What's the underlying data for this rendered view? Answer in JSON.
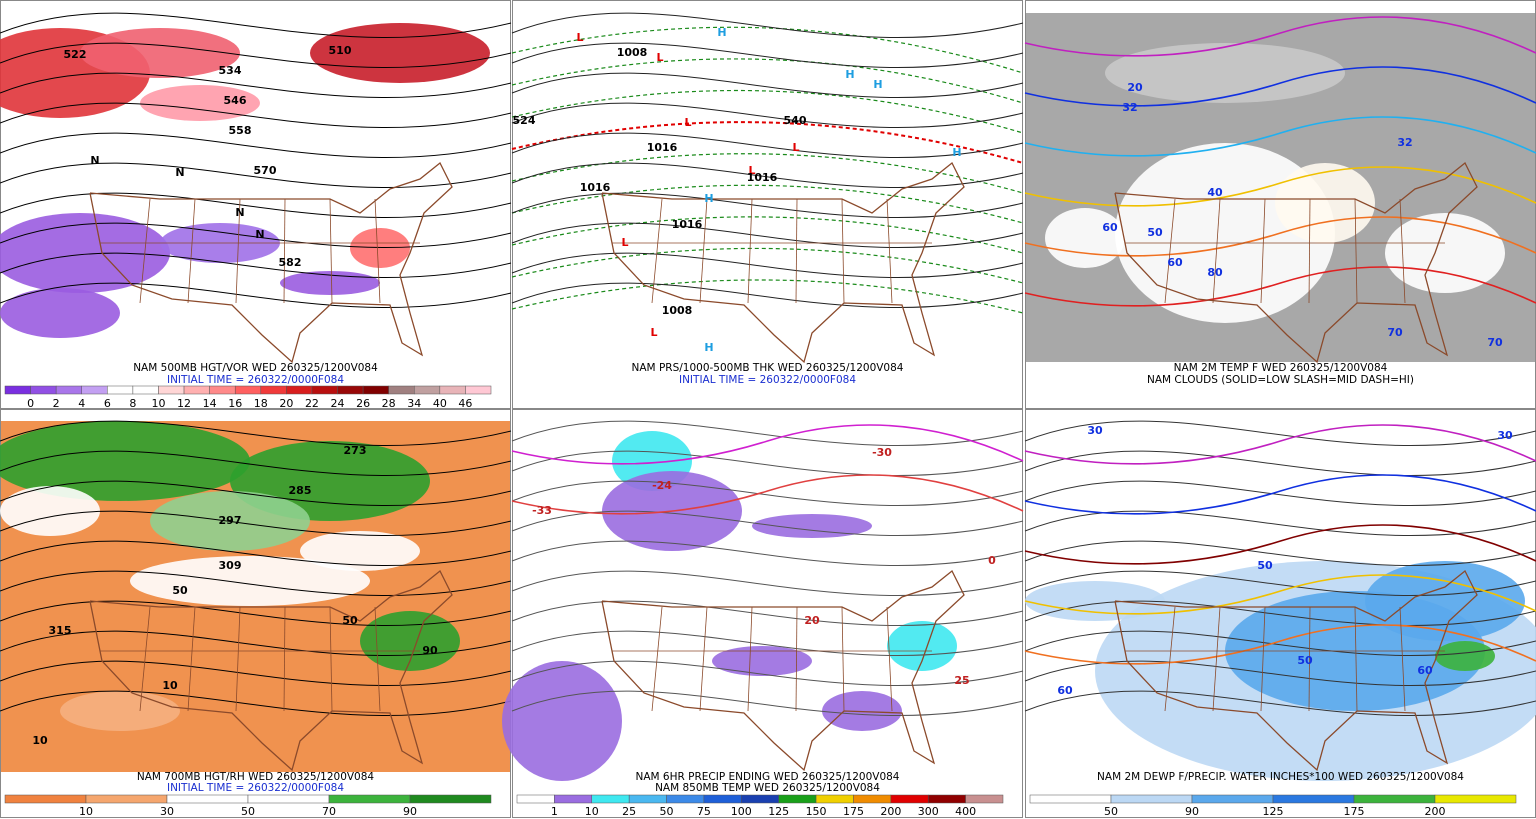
{
  "panels": [
    {
      "caption": [
        "NAM 500MB HGT/VOR WED 260325/1200V084",
        "INITIAL TIME = 260322/0000F084"
      ],
      "colorbar": {
        "labels": [
          0,
          2,
          4,
          6,
          8,
          10,
          12,
          14,
          16,
          18,
          20,
          22,
          24,
          26,
          28,
          34,
          40,
          46
        ],
        "colors": [
          "#7a2fe0",
          "#9150e4",
          "#a976ea",
          "#c3a0f2",
          "#ffffff",
          "#ffffff",
          "#ffd6d6",
          "#ffb0b0",
          "#ff8a8a",
          "#ff6060",
          "#f03a3a",
          "#d81e1e",
          "#b80f0f",
          "#980808",
          "#800000",
          "#a08080",
          "#c0a0a0",
          "#e8b4b8",
          "#ffc8d4"
        ]
      },
      "map_labels": [
        "510",
        "522",
        "534",
        "546",
        "558",
        "570",
        "582",
        "N",
        "N",
        "N",
        "N"
      ]
    },
    {
      "caption": [
        "NAM PRS/1000-500MB THK WED 260325/1200V084",
        "INITIAL TIME = 260322/0000F084"
      ],
      "map_labels": [
        "L",
        "L",
        "L",
        "L",
        "L",
        "L",
        "L",
        "H",
        "H",
        "H",
        "H",
        "H",
        "H",
        "1008",
        "1016",
        "1016",
        "1008",
        "1016",
        "1016",
        "540",
        "524"
      ]
    },
    {
      "caption": [
        "NAM 2M TEMP F WED 260325/1200V084",
        "NAM CLOUDS (SOLID=LOW SLASH=MID DASH=HI)"
      ],
      "map_labels": [
        "20",
        "32",
        "32",
        "40",
        "50",
        "60",
        "60",
        "70",
        "70",
        "80"
      ]
    },
    {
      "caption": [
        "NAM 700MB HGT/RH WED 260325/1200V084",
        "INITIAL TIME = 260322/0000F084"
      ],
      "colorbar": {
        "labels": [
          10,
          30,
          50,
          70,
          90
        ],
        "colors": [
          "#f0823f",
          "#f5a66e",
          "#ffffff",
          "#ffffff",
          "#3cb33c",
          "#1f8a1f"
        ]
      },
      "map_labels": [
        "273",
        "285",
        "297",
        "309",
        "315",
        "10",
        "10",
        "50",
        "50",
        "90"
      ]
    },
    {
      "caption": [
        "NAM 6HR PRECIP ENDING WED 260325/1200V084",
        "NAM 850MB TEMP WED 260325/1200V084"
      ],
      "colorbar": {
        "labels": [
          1,
          10,
          25,
          50,
          75,
          100,
          125,
          150,
          175,
          200,
          300,
          400
        ],
        "colors": [
          "#ffffff",
          "#9a6de0",
          "#3fe8f0",
          "#4ab8f0",
          "#3c8ae8",
          "#1e5fd8",
          "#1a40b0",
          "#1aa01a",
          "#f0d000",
          "#f08c00",
          "#e00000",
          "#900000",
          "#c89090"
        ]
      },
      "map_labels": [
        "-30",
        "-24",
        "-33",
        "0",
        "20",
        "25"
      ]
    },
    {
      "caption": [
        "NAM 2M DEWP F/PRECIP. WATER INCHES*100 WED 260325/1200V084"
      ],
      "colorbar": {
        "labels": [
          50,
          90,
          125,
          175,
          200
        ],
        "colors": [
          "#ffffff",
          "#bcd8f4",
          "#5aa8ec",
          "#2a78e0",
          "#3cb33c",
          "#e8e800"
        ]
      },
      "map_labels": [
        "30",
        "30",
        "50",
        "50",
        "60",
        "60"
      ]
    }
  ]
}
